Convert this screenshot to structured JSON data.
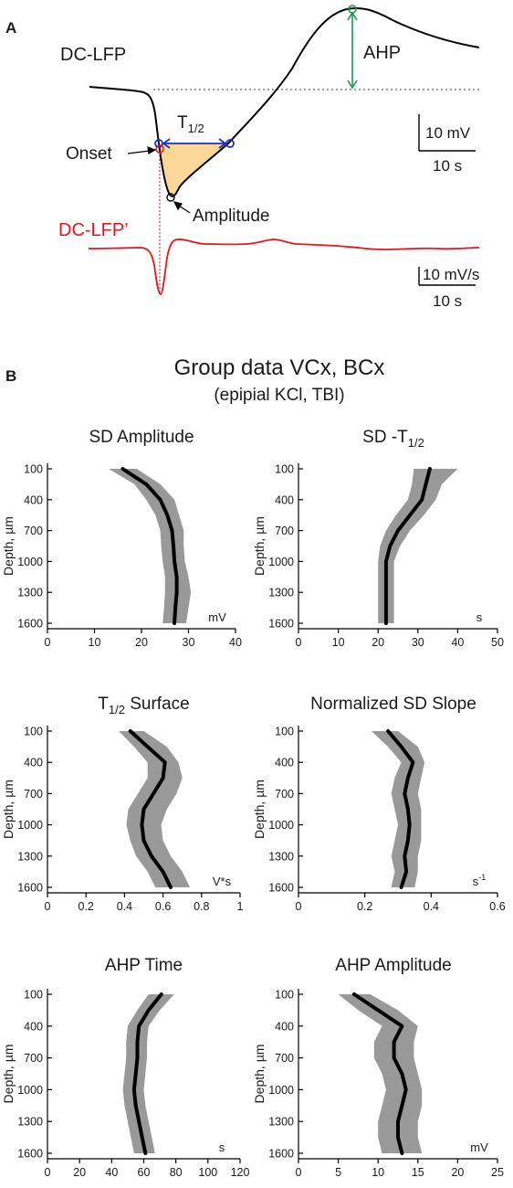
{
  "panel_a": {
    "label": "A",
    "trace_label": "DC-LFP",
    "deriv_label": "DC-LFP’",
    "ahp_label": "AHP",
    "t_half_label": "T",
    "t_half_sub": "1/2",
    "onset_label": "Onset",
    "amplitude_label": "Amplitude",
    "scale1_v": "10 mV",
    "scale1_t": "10 s",
    "scale2_v": "10 mV/s",
    "scale2_t": "10 s",
    "colors": {
      "trace": "#000000",
      "deriv": "#e8141e",
      "ahp": "#1a9850",
      "t_half": "#1f2fbf",
      "fill": "#fcd79a"
    }
  },
  "panel_b": {
    "label": "B",
    "title_line1": "Group data VCx, BCx",
    "title_line2": "(epipial KCl, TBI)",
    "ylabel": "Depth, µm"
  },
  "chart_data": [
    {
      "type": "line",
      "title": "SD Amplitude",
      "title_sub": "",
      "title_post": "",
      "unit": "mV",
      "unit_sup": "",
      "ylabel": "Depth, µm",
      "x_ticks": [
        "0",
        "10",
        "20",
        "30",
        "40"
      ],
      "xlim": [
        0,
        40
      ],
      "y_ticks": [
        "100",
        "400",
        "700",
        "1000",
        "1300",
        "1600"
      ],
      "ylim": [
        100,
        1600
      ],
      "depth": [
        100,
        250,
        400,
        550,
        700,
        850,
        1000,
        1150,
        1300,
        1450,
        1600
      ],
      "mean": [
        16,
        21,
        24,
        25.5,
        26.5,
        26.8,
        27,
        27.5,
        27.5,
        27.2,
        27
      ],
      "lower": [
        13,
        18.5,
        21,
        23,
        24,
        24.2,
        24.5,
        25,
        25,
        24.8,
        24.5
      ],
      "upper": [
        19,
        24,
        27,
        28,
        29,
        29,
        29.2,
        30,
        30.5,
        30,
        29.5
      ]
    },
    {
      "type": "line",
      "title": "SD -T",
      "title_sub": "1/2",
      "title_post": "",
      "unit": "s",
      "unit_sup": "",
      "ylabel": "Depth, µm",
      "x_ticks": [
        "0",
        "10",
        "20",
        "30",
        "40",
        "50"
      ],
      "xlim": [
        0,
        50
      ],
      "y_ticks": [
        "100",
        "400",
        "700",
        "1000",
        "1300",
        "1600"
      ],
      "ylim": [
        100,
        1600
      ],
      "depth": [
        100,
        250,
        400,
        550,
        700,
        850,
        1000,
        1150,
        1300,
        1450,
        1600
      ],
      "mean": [
        33,
        32,
        31,
        28,
        25,
        23,
        22,
        22,
        22,
        22,
        22
      ],
      "lower": [
        29,
        28.5,
        27.5,
        24.5,
        22,
        20.5,
        20,
        20,
        20,
        20,
        20
      ],
      "upper": [
        40,
        36,
        34.5,
        31.5,
        28,
        25.5,
        24,
        24,
        24,
        24,
        24
      ]
    },
    {
      "type": "line",
      "title": "T",
      "title_sub": "1/2",
      "title_post": " Surface",
      "unit": "V*s",
      "unit_sup": "",
      "ylabel": "Depth, µm",
      "x_ticks": [
        "0",
        "0.2",
        "0.4",
        "0.6",
        "0.8",
        "1"
      ],
      "xlim": [
        0,
        1
      ],
      "y_ticks": [
        "100",
        "400",
        "700",
        "1000",
        "1300",
        "1600"
      ],
      "ylim": [
        100,
        1600
      ],
      "depth": [
        100,
        250,
        400,
        550,
        700,
        850,
        1000,
        1150,
        1300,
        1450,
        1600
      ],
      "mean": [
        0.43,
        0.52,
        0.61,
        0.6,
        0.55,
        0.5,
        0.49,
        0.5,
        0.54,
        0.6,
        0.64
      ],
      "lower": [
        0.37,
        0.45,
        0.52,
        0.52,
        0.47,
        0.42,
        0.41,
        0.43,
        0.46,
        0.52,
        0.56
      ],
      "upper": [
        0.5,
        0.62,
        0.68,
        0.7,
        0.67,
        0.62,
        0.59,
        0.6,
        0.64,
        0.7,
        0.74
      ]
    },
    {
      "type": "line",
      "title": "Normalized SD Slope",
      "title_sub": "",
      "title_post": "",
      "unit": "s",
      "unit_sup": "-1",
      "ylabel": "Depth, µm",
      "x_ticks": [
        "0",
        "0.2",
        "0.4",
        "0.6"
      ],
      "xlim": [
        0,
        0.6
      ],
      "y_ticks": [
        "100",
        "400",
        "700",
        "1000",
        "1300",
        "1600"
      ],
      "ylim": [
        100,
        1600
      ],
      "depth": [
        100,
        250,
        400,
        550,
        700,
        850,
        1000,
        1150,
        1300,
        1450,
        1600
      ],
      "mean": [
        0.27,
        0.31,
        0.345,
        0.33,
        0.32,
        0.33,
        0.335,
        0.33,
        0.32,
        0.325,
        0.31
      ],
      "lower": [
        0.22,
        0.27,
        0.31,
        0.29,
        0.28,
        0.29,
        0.3,
        0.29,
        0.28,
        0.29,
        0.28
      ],
      "upper": [
        0.3,
        0.36,
        0.38,
        0.37,
        0.36,
        0.37,
        0.37,
        0.37,
        0.36,
        0.36,
        0.35
      ]
    },
    {
      "type": "line",
      "title": "AHP Time",
      "title_sub": "",
      "title_post": "",
      "unit": "s",
      "unit_sup": "",
      "ylabel": "Depth, µm",
      "x_ticks": [
        "0",
        "20",
        "40",
        "60",
        "80",
        "100",
        "120"
      ],
      "xlim": [
        0,
        120
      ],
      "y_ticks": [
        "100",
        "400",
        "700",
        "1000",
        "1300",
        "1600"
      ],
      "ylim": [
        100,
        1600
      ],
      "depth": [
        100,
        250,
        400,
        550,
        700,
        850,
        1000,
        1150,
        1300,
        1450,
        1600
      ],
      "mean": [
        71,
        63,
        57,
        56,
        56,
        55,
        54,
        55,
        57,
        59,
        61
      ],
      "lower": [
        63,
        56,
        50,
        49,
        49,
        48,
        47,
        48,
        50,
        52,
        54
      ],
      "upper": [
        79,
        70,
        63,
        62,
        62,
        61,
        60,
        61,
        63,
        65,
        67
      ]
    },
    {
      "type": "line",
      "title": "AHP Amplitude",
      "title_sub": "",
      "title_post": "",
      "unit": "mV",
      "unit_sup": "",
      "ylabel": "Depth, µm",
      "x_ticks": [
        "0",
        "5",
        "10",
        "15",
        "20",
        "25"
      ],
      "xlim": [
        0,
        25
      ],
      "y_ticks": [
        "100",
        "400",
        "700",
        "1000",
        "1300",
        "1600"
      ],
      "ylim": [
        100,
        1600
      ],
      "depth": [
        100,
        250,
        400,
        550,
        700,
        850,
        1000,
        1150,
        1300,
        1450,
        1600
      ],
      "mean": [
        7,
        10,
        13,
        12,
        12,
        13,
        13.5,
        13,
        12.5,
        12.5,
        13
      ],
      "lower": [
        5,
        7.5,
        10.5,
        9.5,
        9.5,
        10.5,
        11,
        10.5,
        10,
        10,
        10.5
      ],
      "upper": [
        9,
        12.5,
        15,
        14.5,
        14.5,
        15,
        15.5,
        15.5,
        15,
        15,
        15.5
      ]
    }
  ]
}
